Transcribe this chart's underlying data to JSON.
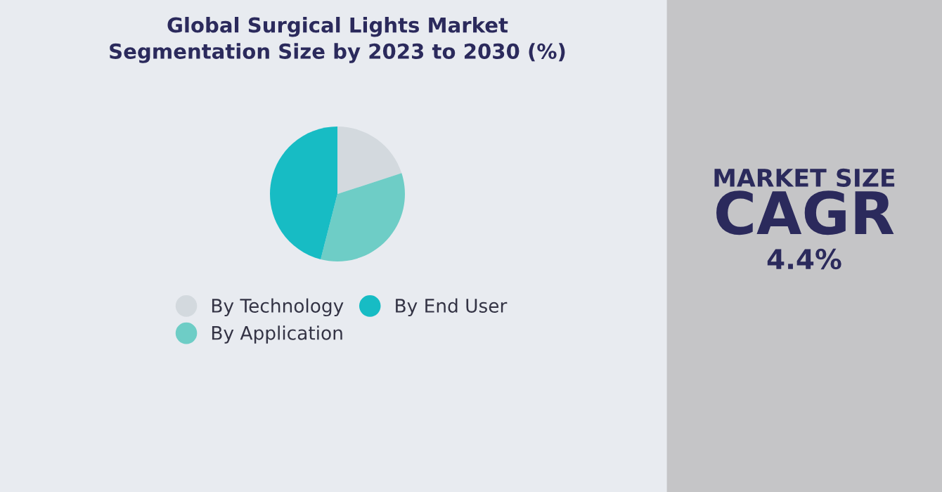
{
  "chart_data": [
    {
      "type": "pie",
      "title": "Global Surgical Lights Market\nSegmentation Size by 2023 to 2030 (%)",
      "categories": [
        "By Technology",
        "By Application",
        "By End User"
      ],
      "values": [
        20,
        34,
        46
      ],
      "colors": [
        "#d3d9de",
        "#6ecdc6",
        "#17bcc4"
      ],
      "legend": "bottom"
    },
    {
      "type": "other",
      "annotations": [
        "MARKET SIZE",
        "CAGR",
        "4.4%"
      ]
    }
  ]
}
